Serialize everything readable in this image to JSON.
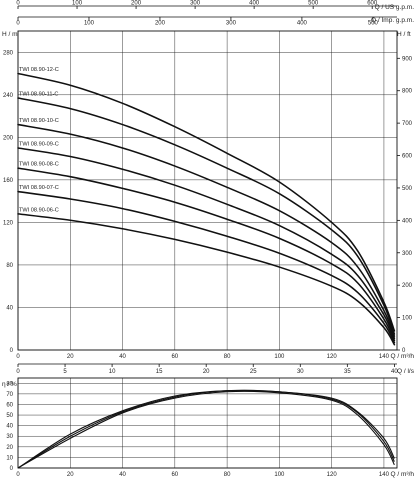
{
  "chart_data": [
    {
      "type": "line",
      "name_axes": {
        "x_bottom_label": "Q / m³/h",
        "x_top1_label": "Q / US g.p.m.",
        "x_top2_label": "Q / Imp. g.p.m.",
        "y_left_label": "H / m",
        "y_right_label": "H / ft"
      },
      "x_bottom": {
        "min": 0,
        "max": 145,
        "ticks": [
          0,
          20,
          40,
          60,
          80,
          100,
          120,
          140
        ]
      },
      "x_top_us_gpm": {
        "ticks": [
          0,
          100,
          200,
          300,
          400,
          500,
          600
        ]
      },
      "x_top_imp_gpm": {
        "ticks": [
          0,
          100,
          200,
          300,
          400,
          500
        ]
      },
      "y_left": {
        "min": 0,
        "max": 300,
        "ticks": [
          0,
          40,
          80,
          120,
          160,
          200,
          240,
          280
        ]
      },
      "y_right": {
        "ticks": [
          0,
          100,
          200,
          300,
          400,
          500,
          600,
          700,
          800,
          900
        ]
      },
      "grid": true,
      "series": [
        {
          "name": "TWI 08.90-12-C",
          "x": [
            0,
            20,
            40,
            60,
            80,
            100,
            120,
            130,
            140,
            144
          ],
          "y": [
            260,
            249,
            232,
            210,
            185,
            158,
            120,
            93,
            45,
            18
          ]
        },
        {
          "name": "TWI 08.90-11-C",
          "x": [
            0,
            20,
            40,
            60,
            80,
            100,
            120,
            130,
            140,
            144
          ],
          "y": [
            237,
            227,
            212,
            193,
            171,
            147,
            113,
            88,
            42,
            15
          ]
        },
        {
          "name": "TWI 08.90-10-C",
          "x": [
            0,
            20,
            40,
            60,
            80,
            100,
            120,
            130,
            140,
            144
          ],
          "y": [
            212,
            203,
            190,
            173,
            153,
            131,
            101,
            78,
            37,
            13
          ]
        },
        {
          "name": "TWI 08.90-09-C",
          "x": [
            0,
            20,
            40,
            60,
            80,
            100,
            120,
            130,
            140,
            144
          ],
          "y": [
            190,
            182,
            170,
            155,
            137,
            117,
            90,
            70,
            33,
            11
          ]
        },
        {
          "name": "TWI 08.90-08-C",
          "x": [
            0,
            20,
            40,
            60,
            80,
            100,
            120,
            130,
            140,
            144
          ],
          "y": [
            171,
            163,
            152,
            139,
            123,
            105,
            81,
            63,
            29,
            9
          ]
        },
        {
          "name": "TWI 08.90-07-C",
          "x": [
            0,
            20,
            40,
            60,
            80,
            100,
            120,
            130,
            140,
            144
          ],
          "y": [
            149,
            142,
            133,
            121,
            107,
            91,
            70,
            54,
            25,
            7
          ]
        },
        {
          "name": "TWI 08.90-06-C",
          "x": [
            0,
            20,
            40,
            60,
            80,
            100,
            120,
            130,
            140,
            144
          ],
          "y": [
            128,
            122,
            114,
            104,
            92,
            78,
            60,
            46,
            21,
            5
          ]
        }
      ]
    },
    {
      "type": "line",
      "name_axes": {
        "x_bottom_label": "Q / m³/h",
        "x_top_label": "Q / l/s",
        "y_left_label": "η / %"
      },
      "x_bottom": {
        "min": 0,
        "max": 145,
        "ticks": [
          0,
          20,
          40,
          60,
          80,
          100,
          120,
          140
        ]
      },
      "x_top_ls": {
        "ticks": [
          0,
          5,
          10,
          15,
          20,
          25,
          30,
          35,
          40
        ]
      },
      "y_left": {
        "min": 0,
        "max": 85,
        "ticks": [
          0,
          10,
          20,
          30,
          40,
          50,
          60,
          70,
          80
        ]
      },
      "grid": true,
      "series": [
        {
          "x": [
            0,
            20,
            40,
            60,
            80,
            100,
            120,
            130,
            140,
            144
          ],
          "y": [
            0,
            28,
            52,
            66,
            72,
            71,
            64,
            50,
            22,
            3
          ]
        },
        {
          "x": [
            0,
            20,
            40,
            60,
            80,
            100,
            120,
            130,
            140,
            144
          ],
          "y": [
            0,
            30,
            53,
            67,
            73,
            72,
            65,
            52,
            25,
            6
          ]
        },
        {
          "x": [
            0,
            20,
            40,
            60,
            80,
            100,
            120,
            130,
            140,
            144
          ],
          "y": [
            0,
            32,
            54,
            68,
            73,
            72,
            66,
            53,
            28,
            9
          ]
        }
      ]
    }
  ]
}
